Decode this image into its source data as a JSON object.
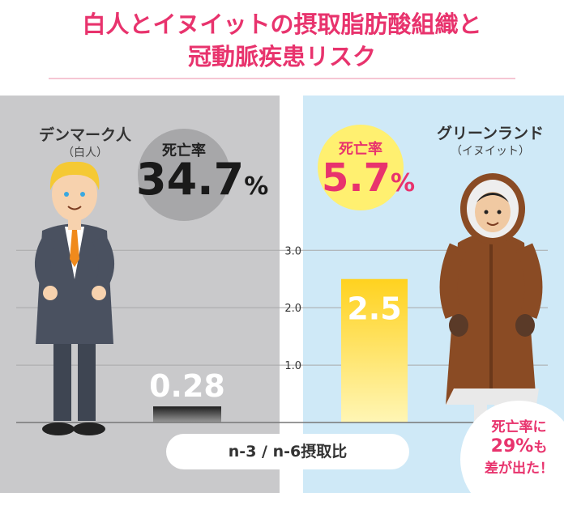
{
  "header": {
    "title_line1": "白人とイヌイットの摂取脂肪酸組織と",
    "title_line2": "冠動脈疾患リスク"
  },
  "left_group": {
    "name": "デンマーク人",
    "sub": "（白人）",
    "mortality_label": "死亡率",
    "mortality_value": "34.7",
    "mortality_unit": "%"
  },
  "right_group": {
    "name": "グリーンランド",
    "sub": "（イヌイット）",
    "mortality_label": "死亡率",
    "mortality_value": "5.7",
    "mortality_unit": "%"
  },
  "callout": {
    "line1": "死亡率に",
    "line2_value": "29%",
    "line2_suffix": "も",
    "line3": "差が出た！"
  },
  "colors": {
    "title": "#e8336d",
    "left_panel": "#c9c9cb",
    "right_panel": "#cfe9f7",
    "bar_left": "#2b2b2b",
    "bar_right": "#ffd21f"
  },
  "chart_data": {
    "type": "bar",
    "categories": [
      "デンマーク人",
      "グリーンランド"
    ],
    "values": [
      0.28,
      2.5
    ],
    "value_labels": [
      "0.28",
      "2.5"
    ],
    "xlabel": "n-3 / n-6摂取比",
    "ylabel": "",
    "ylim": [
      0,
      3.3
    ],
    "yticks": [
      1.0,
      2.0,
      3.0
    ],
    "ytick_labels": [
      "1.0",
      "2.0",
      "3.0"
    ],
    "grid": true
  }
}
